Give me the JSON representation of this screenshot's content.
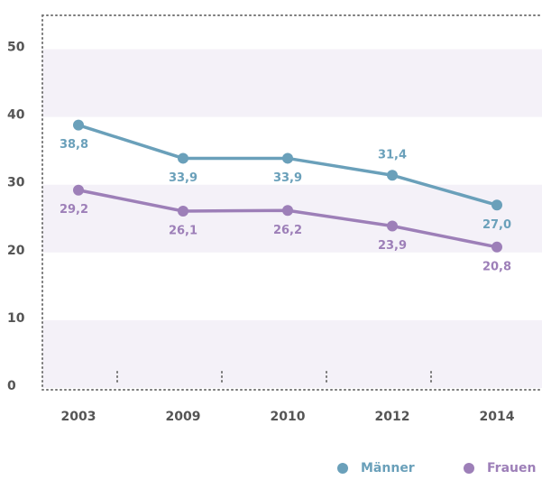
{
  "chart_data": {
    "type": "line",
    "categories": [
      "2003",
      "2009",
      "2010",
      "2012",
      "2014"
    ],
    "series": [
      {
        "name": "Männer",
        "color": "#6aa0ba",
        "values": [
          38.8,
          33.9,
          33.9,
          31.4,
          27.0
        ],
        "value_labels": [
          "38,8",
          "33,9",
          "33,9",
          "31,4",
          "27,0"
        ]
      },
      {
        "name": "Frauen",
        "color": "#9d7fb8",
        "values": [
          29.2,
          26.1,
          26.2,
          23.9,
          20.8
        ],
        "value_labels": [
          "29,2",
          "26,1",
          "26,2",
          "23,9",
          "20,8"
        ]
      }
    ],
    "ylim": [
      0,
      55
    ],
    "yticks": [
      0,
      10,
      20,
      30,
      40,
      50
    ],
    "grid": true,
    "legend": "bottom-right"
  }
}
